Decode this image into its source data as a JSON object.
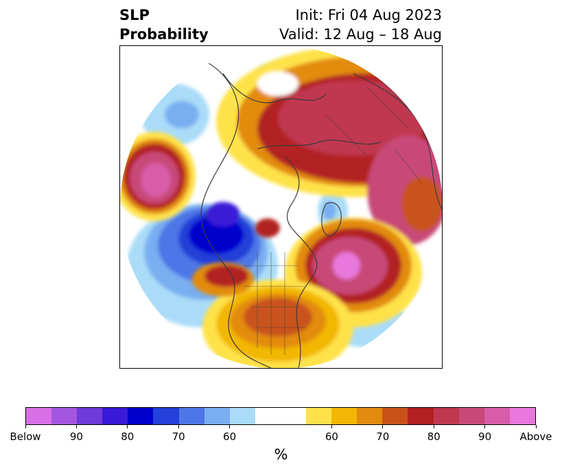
{
  "title": {
    "left_line1": "SLP",
    "left_line2": "Probability",
    "right_line1": "Init: Fri 04 Aug 2023",
    "right_line2": "Valid: 12 Aug – 18 Aug"
  },
  "colorbar": {
    "colors": [
      "#d96fe6",
      "#a357e0",
      "#6f3ad9",
      "#3a1ad6",
      "#0000cd",
      "#2340d8",
      "#4e76e6",
      "#79aef0",
      "#aadcf8",
      "#ffffff",
      "#ffffff",
      "#ffe24a",
      "#f2b705",
      "#e28b0e",
      "#c9521b",
      "#b22222",
      "#c0384f",
      "#c84a78",
      "#d95ca8",
      "#e878dc"
    ],
    "tick_labels": [
      "Below",
      "90",
      "80",
      "70",
      "60",
      "60",
      "70",
      "80",
      "90",
      "Above"
    ],
    "unit_label": "%"
  },
  "map": {
    "projection": "north-polar-stereographic",
    "description_colors": {
      "below_strong": "#0000cd",
      "below_mid": "#4e76e6",
      "below_weak": "#aadcf8",
      "neutral": "#ffffff",
      "above_weak": "#ffe24a",
      "above_mid": "#e28b0e",
      "above_strong": "#b22222",
      "above_very": "#c84a78",
      "above_extreme": "#e878dc"
    }
  }
}
